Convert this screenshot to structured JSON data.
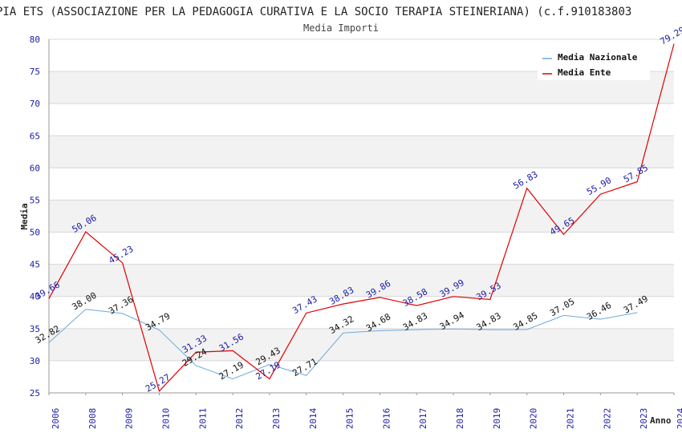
{
  "chart_data": {
    "type": "line",
    "title": "PIA ETS (ASSOCIAZIONE PER LA PEDAGOGIA CURATIVA E LA SOCIO TERAPIA STEINERIANA) (c.f.910183803",
    "subtitle": "Media Importi",
    "xlabel": "Anno",
    "ylabel": "Media",
    "ylim": [
      25,
      80
    ],
    "yticks": [
      25,
      30,
      35,
      40,
      45,
      50,
      55,
      60,
      65,
      70,
      75,
      80
    ],
    "categories": [
      "2006",
      "2008",
      "2009",
      "2010",
      "2011",
      "2012",
      "2013",
      "2014",
      "2015",
      "2016",
      "2017",
      "2018",
      "2019",
      "2020",
      "2021",
      "2022",
      "2023",
      "2024"
    ],
    "grid": "horizontal bands",
    "legend_position": "top-right",
    "series": [
      {
        "name": "Media Nazionale",
        "color": "#6fa8dc",
        "values": [
          32.82,
          38.0,
          37.36,
          34.79,
          29.24,
          27.19,
          29.43,
          27.71,
          34.32,
          34.68,
          34.83,
          34.94,
          34.83,
          34.85,
          37.05,
          36.46,
          37.49,
          null
        ],
        "labels": [
          "32.82",
          "38.00",
          "37.36",
          "34.79",
          "29.24",
          "27.19",
          "29.43",
          "27.71",
          "34.32",
          "34.68",
          "34.83",
          "34.94",
          "34.83",
          "34.85",
          "37.05",
          "36.46",
          "37.49",
          ""
        ]
      },
      {
        "name": "Media Ente",
        "color": "#e00000",
        "values": [
          39.66,
          50.06,
          45.23,
          25.27,
          31.33,
          31.56,
          27.19,
          37.43,
          38.83,
          39.86,
          38.58,
          39.99,
          39.53,
          56.83,
          49.65,
          55.9,
          57.85,
          79.29
        ],
        "labels": [
          "39.66",
          "50.06",
          "45.23",
          "25.27",
          "31.33",
          "31.56",
          "27.19",
          "37.43",
          "38.83",
          "39.86",
          "38.58",
          "39.99",
          "39.53",
          "56.83",
          "49.65",
          "55.90",
          "57.85",
          "79.29"
        ]
      }
    ]
  }
}
